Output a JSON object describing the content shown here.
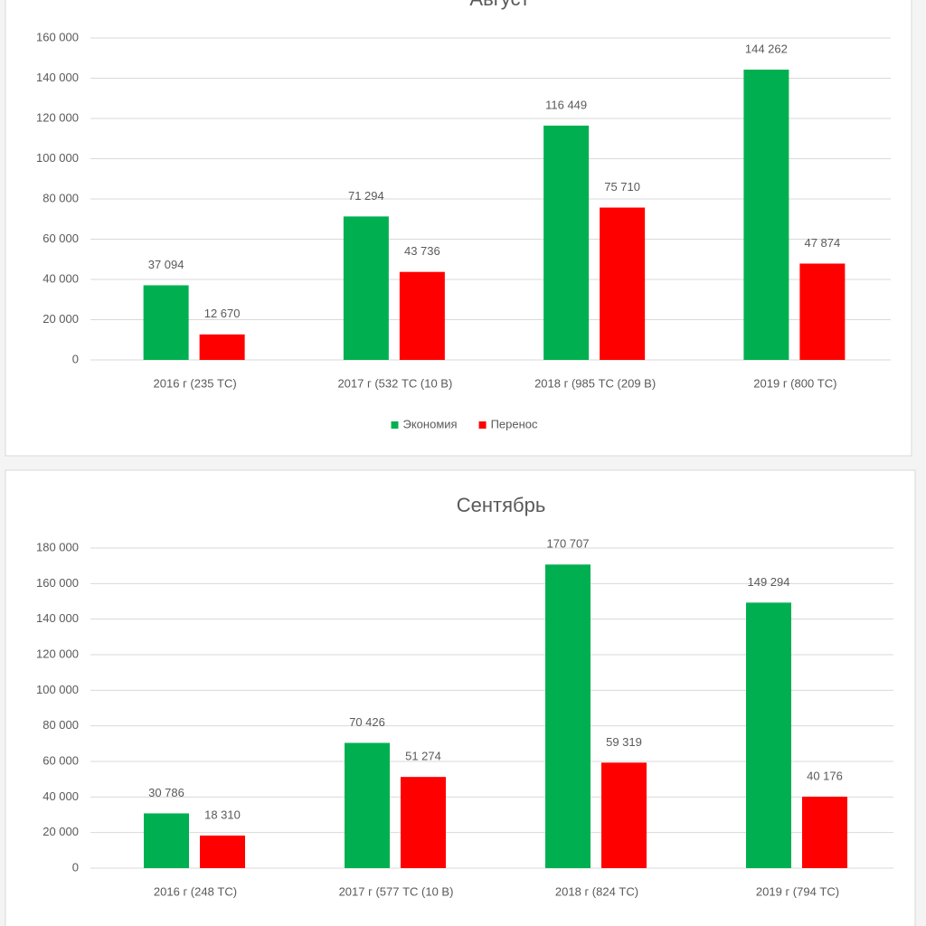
{
  "chart_data": [
    {
      "type": "bar",
      "title": "Август",
      "categories": [
        "2016 г (235 ТС)",
        "2017 г (532 ТС (10 В)",
        "2018 г (985 ТС (209 В)",
        "2019 г (800 ТС)"
      ],
      "series": [
        {
          "name": "Экономия",
          "color": "#00b050",
          "values": [
            37094,
            71294,
            116449,
            144262
          ],
          "value_labels": [
            "37 094",
            "71 294",
            "116 449",
            "144 262"
          ]
        },
        {
          "name": "Перенос",
          "color": "#ff0000",
          "values": [
            12670,
            43736,
            75710,
            47874
          ],
          "value_labels": [
            "12 670",
            "43 736",
            "75 710",
            "47 874"
          ]
        }
      ],
      "ylim": [
        0,
        160000
      ],
      "yticks": [
        0,
        {
          "value": 20000,
          "label": "20 000"
        },
        {
          "value": 40000,
          "label": "40 000"
        },
        {
          "value": 60000,
          "label": "60 000"
        },
        {
          "value": 80000,
          "label": "80 000"
        },
        {
          "value": 100000,
          "label": "100 000"
        },
        {
          "value": 120000,
          "label": "120 000"
        },
        {
          "value": 140000,
          "label": "140 000"
        },
        {
          "value": 160000,
          "label": "160 000"
        }
      ],
      "grid": true,
      "legend": "bottom"
    },
    {
      "type": "bar",
      "title": "Сентябрь",
      "categories": [
        "2016 г (248 ТС)",
        "2017 г (577 ТС (10 В)",
        "2018 г (824 ТС)",
        "2019 г (794 ТС)"
      ],
      "series": [
        {
          "color": "#00b050",
          "values": [
            30786,
            70426,
            170707,
            149294
          ],
          "value_labels": [
            "30 786",
            "70 426",
            "170 707",
            "149 294"
          ]
        },
        {
          "color": "#ff0000",
          "values": [
            18310,
            51274,
            59319,
            40176
          ],
          "value_labels": [
            "18 310",
            "51 274",
            "59 319",
            "40 176"
          ]
        }
      ],
      "ylim": [
        0,
        180000
      ],
      "yticks": [
        0,
        {
          "value": 20000,
          "label": "20 000"
        },
        {
          "value": 40000,
          "label": "40 000"
        },
        {
          "value": 60000,
          "label": "60 000"
        },
        {
          "value": 80000,
          "label": "80 000"
        },
        {
          "value": 100000,
          "label": "100 000"
        },
        {
          "value": 120000,
          "label": "120 000"
        },
        {
          "value": 140000,
          "label": "140 000"
        },
        {
          "value": 160000,
          "label": "160 000"
        },
        {
          "value": 180000,
          "label": "180 000"
        }
      ],
      "grid": true
    }
  ]
}
